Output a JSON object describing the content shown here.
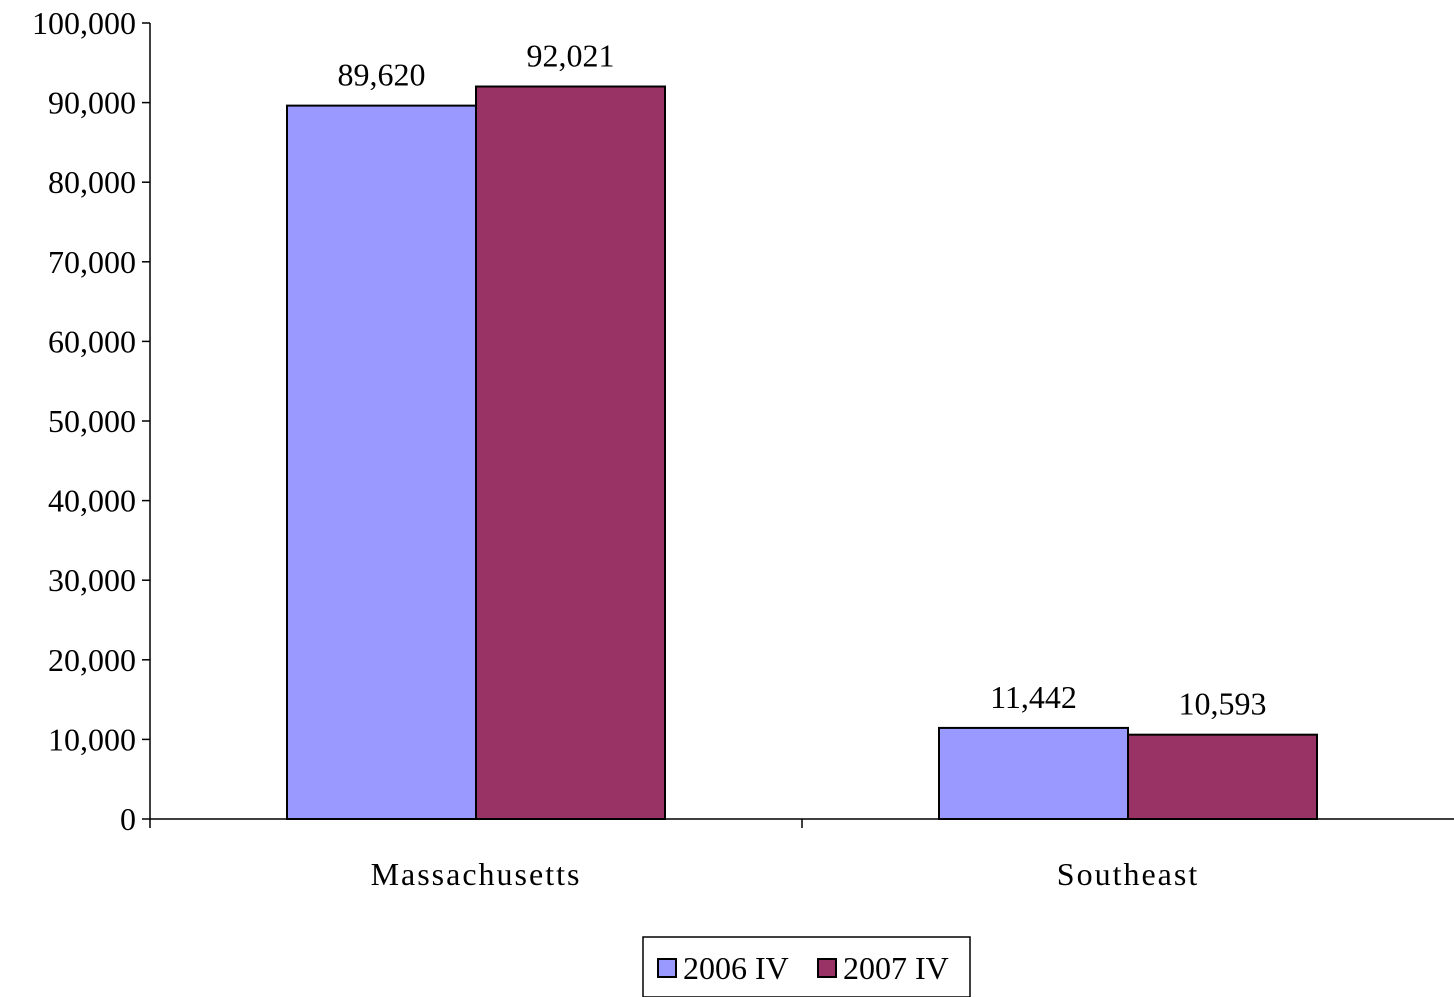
{
  "chart_data": {
    "type": "bar",
    "title": "",
    "xlabel": "",
    "ylabel": "",
    "categories": [
      "Massachusetts",
      "Southeast"
    ],
    "series": [
      {
        "name": "2006 IV",
        "color": "#9999ff",
        "values": [
          89620,
          11442
        ]
      },
      {
        "name": "2007 IV",
        "color": "#993366",
        "values": [
          92021,
          10593
        ]
      }
    ],
    "data_labels": [
      [
        "89,620",
        "11,442"
      ],
      [
        "92,021",
        "10,593"
      ]
    ],
    "ylim": [
      0,
      100000
    ],
    "ytick_step": 10000,
    "ytick_labels": [
      "0",
      "10,000",
      "20,000",
      "30,000",
      "40,000",
      "50,000",
      "60,000",
      "70,000",
      "80,000",
      "90,000",
      "100,000"
    ],
    "grid": false,
    "legend_position": "bottom-center"
  }
}
